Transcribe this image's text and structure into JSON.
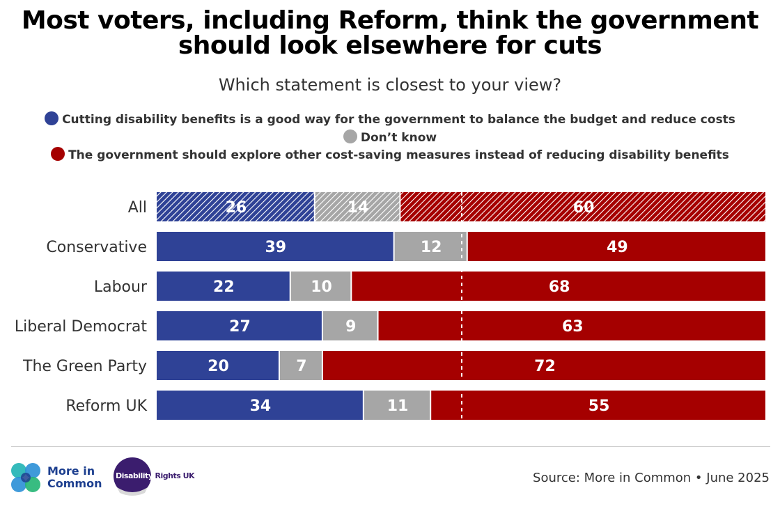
{
  "chart_data": {
    "type": "bar",
    "orientation": "horizontal",
    "stacked": true,
    "title": "Most voters, including Reform, think the government should look elsewhere for cuts",
    "title_lines": [
      "Most voters, including Reform, think the government",
      "should look elsewhere for cuts"
    ],
    "subtitle": "Which statement is closest to your view?",
    "categories": [
      "All",
      "Conservative",
      "Labour",
      "Liberal Democrat",
      "The Green Party",
      "Reform UK"
    ],
    "series": [
      {
        "name": "Cutting disability benefits is a good way for the government to balance the budget and reduce costs",
        "color": "#2f4296",
        "values": [
          26,
          39,
          22,
          27,
          20,
          34
        ]
      },
      {
        "name": "Don’t know",
        "color": "#a6a6a6",
        "values": [
          14,
          12,
          10,
          9,
          7,
          11
        ]
      },
      {
        "name": "The government should explore other cost-saving measures instead of reducing disability benefits",
        "color": "#a50000",
        "values": [
          60,
          49,
          68,
          63,
          72,
          55
        ]
      }
    ],
    "highlighted_category": "All",
    "reference_line": 50,
    "xlim": [
      0,
      100
    ],
    "legend_position": "top"
  },
  "footer": {
    "source": "Source: More in Common • June 2025",
    "logo_mic_line1": "More in",
    "logo_mic_line2": "Common",
    "logo_dr_a": "Disability",
    "logo_dr_b": "Rights UK"
  }
}
